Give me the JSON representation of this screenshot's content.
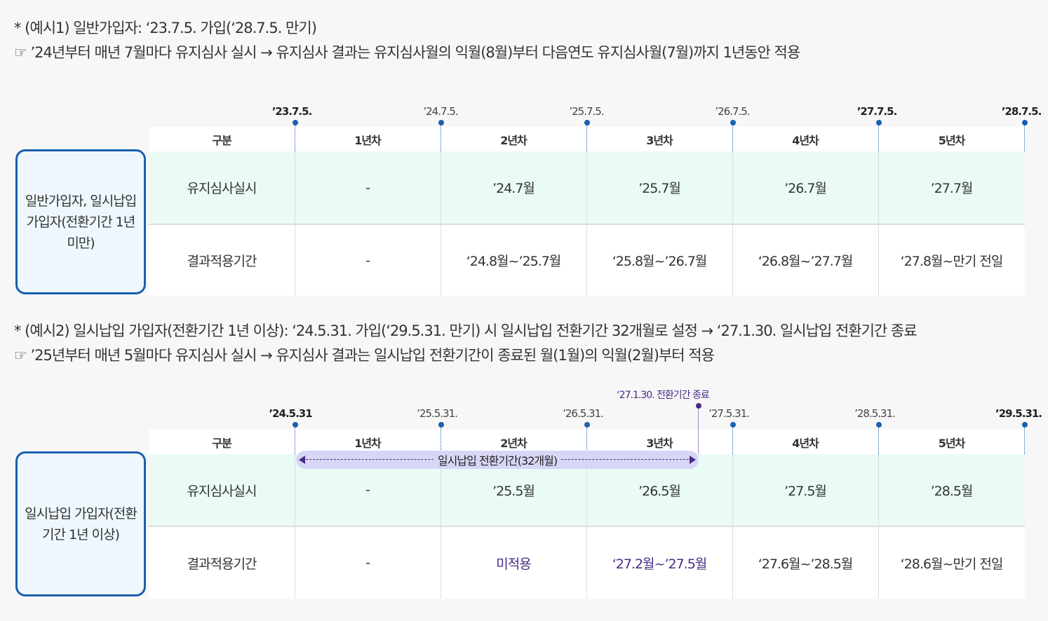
{
  "example1": {
    "line1": "* (예시1) 일반가입자: ‘23.7.5. 가입(‘28.7.5. 만기)",
    "line2": "☞ ’24년부터 매년 7월마다 유지심사 실시 → 유지심사 결과는 유지심사월의 익월(8월)부터 다음연도 유지심사월(7월)까지 1년동안 적용",
    "side_label": "일반가입자, 일시납입 가입자(전환기간 1년 미만)",
    "dates": [
      "’23.7.5.",
      "’24.7.5.",
      "’25.7.5.",
      "’26.7.5.",
      "’27.7.5.",
      "’28.7.5."
    ],
    "headers": [
      "구분",
      "1년차",
      "2년차",
      "3년차",
      "4년차",
      "5년차"
    ],
    "row1": [
      "유지심사실시",
      "-",
      "’24.7월",
      "’25.7월",
      "’26.7월",
      "’27.7월"
    ],
    "row2": [
      "결과적용기간",
      "-",
      "‘24.8월~’25.7월",
      "‘25.8월~’26.7월",
      "‘26.8월~’27.7월",
      "‘27.8월~만기 전일"
    ]
  },
  "example2": {
    "line1": "* (예시2) 일시납입 가입자(전환기간 1년 이상): ‘24.5.31. 가입(‘29.5.31. 만기) 시 일시납입 전환기간 32개월로 설정 → ‘27.1.30. 일시납입 전환기간 종료",
    "line2": "☞ ’25년부터 매년 5월마다 유지심사 실시 → 유지심사 결과는 일시납입 전환기간이 종료된 월(1월)의 익월(2월)부터 적용",
    "side_label": "일시납입 가입자(전환기간 1년 이상)",
    "end_note": "‘27.1.30. 전환기간 종료",
    "dates": [
      "’24.5.31",
      "’25.5.31.",
      "’26.5.31.",
      "’27.5.31.",
      "’28.5.31.",
      "’29.5.31."
    ],
    "headers": [
      "구분",
      "1년차",
      "2년차",
      "3년차",
      "4년차",
      "5년차"
    ],
    "pill_label": "일시납입 전환기간(32개월)",
    "row1": [
      "유지심사실시",
      "-",
      "’25.5월",
      "’26.5월",
      "’27.5월",
      "’28.5월"
    ],
    "row2": [
      "결과적용기간",
      "-",
      "미적용",
      "‘27.2월~’27.5월",
      "‘27.6월~’28.5월",
      "‘28.6월~만기 전일"
    ]
  },
  "colors": {
    "blue": "#1a5fb0",
    "purple": "#4a2a86",
    "mint": "#eafbf6",
    "side_bg": "#eef7fd"
  }
}
